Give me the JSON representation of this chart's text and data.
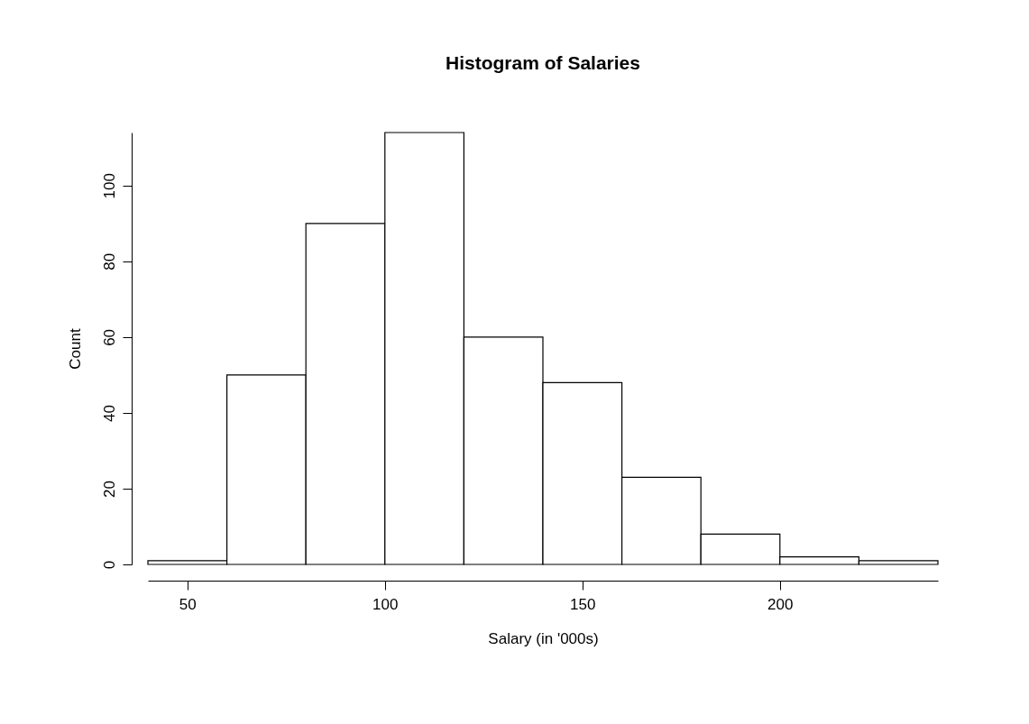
{
  "chart_data": {
    "type": "histogram",
    "title": "Histogram of Salaries",
    "xlabel": "Salary (in '000s)",
    "ylabel": "Count",
    "bins": [
      40,
      60,
      80,
      100,
      120,
      140,
      160,
      180,
      200,
      220,
      240
    ],
    "values": [
      1,
      50,
      90,
      114,
      60,
      48,
      23,
      8,
      2,
      1
    ],
    "color": "#ffffff",
    "xlim": [
      40,
      240
    ],
    "xticks": [
      50,
      100,
      150,
      200
    ],
    "ylim": [
      0,
      114
    ],
    "yticks": [
      0,
      20,
      40,
      60,
      80,
      100
    ],
    "grid": false,
    "legend": false
  }
}
